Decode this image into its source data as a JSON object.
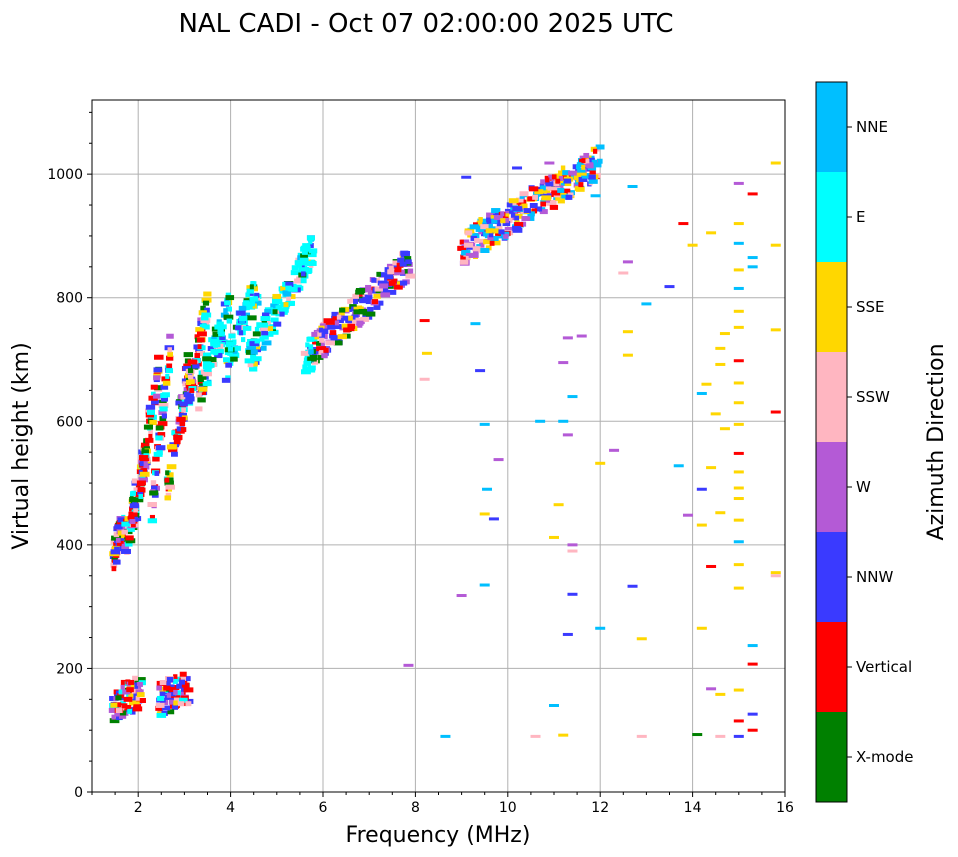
{
  "chart_data": {
    "type": "scatter",
    "title": "NAL CADI - Oct 07 02:00:00 2025 UTC",
    "xlabel": "Frequency (MHz)",
    "ylabel": "Virtual height (km)",
    "xlim": [
      1,
      16
    ],
    "ylim": [
      0,
      1120
    ],
    "xticks": [
      2,
      4,
      6,
      8,
      10,
      12,
      14,
      16
    ],
    "yticks": [
      0,
      200,
      400,
      600,
      800,
      1000
    ],
    "grid": true,
    "colorbar": {
      "title": "Azimuth Direction",
      "categories": [
        {
          "name": "X-mode",
          "color": "#008000"
        },
        {
          "name": "Vertical",
          "color": "#ff0000"
        },
        {
          "name": "NNW",
          "color": "#3a3aff"
        },
        {
          "name": "W",
          "color": "#b45ad6"
        },
        {
          "name": "SSW",
          "color": "#ffb6c1"
        },
        {
          "name": "SSE",
          "color": "#ffd700"
        },
        {
          "name": "E",
          "color": "#00ffff"
        },
        {
          "name": "NNE",
          "color": "#00bfff"
        }
      ]
    },
    "trace_segments": [
      {
        "f0": 1.45,
        "f1": 1.7,
        "h0": 375,
        "h1": 445
      },
      {
        "f0": 1.7,
        "f1": 2.0,
        "h0": 400,
        "h1": 470
      },
      {
        "f0": 1.85,
        "f1": 2.2,
        "h0": 450,
        "h1": 560
      },
      {
        "f0": 2.05,
        "f1": 2.45,
        "h0": 500,
        "h1": 680
      },
      {
        "f0": 2.3,
        "f1": 2.7,
        "h0": 460,
        "h1": 720
      },
      {
        "f0": 2.6,
        "f1": 3.1,
        "h0": 480,
        "h1": 690
      },
      {
        "f0": 2.9,
        "f1": 3.5,
        "h0": 580,
        "h1": 790
      },
      {
        "f0": 3.3,
        "f1": 4.0,
        "h0": 640,
        "h1": 790
      },
      {
        "f0": 3.9,
        "f1": 4.6,
        "h0": 690,
        "h1": 820
      },
      {
        "f0": 4.4,
        "f1": 5.8,
        "h0": 700,
        "h1": 880
      },
      {
        "f0": 5.6,
        "f1": 7.9,
        "h0": 700,
        "h1": 860
      },
      {
        "f0": 9.0,
        "f1": 12.0,
        "h0": 880,
        "h1": 1020
      },
      {
        "f0": 1.45,
        "f1": 2.1,
        "h0": 140,
        "h1": 165
      },
      {
        "f0": 2.45,
        "f1": 3.1,
        "h0": 150,
        "h1": 168
      }
    ],
    "points": [
      {
        "f": 9.1,
        "h": 995,
        "az": "NNW"
      },
      {
        "f": 9.2,
        "h": 870,
        "az": "W"
      },
      {
        "f": 9.3,
        "h": 758,
        "az": "NNE"
      },
      {
        "f": 9.4,
        "h": 682,
        "az": "NNW"
      },
      {
        "f": 9.5,
        "h": 595,
        "az": "NNE"
      },
      {
        "f": 9.55,
        "h": 490,
        "az": "NNE"
      },
      {
        "f": 9.5,
        "h": 450,
        "az": "SSE"
      },
      {
        "f": 9.7,
        "h": 442,
        "az": "NNW"
      },
      {
        "f": 9.5,
        "h": 335,
        "az": "NNE"
      },
      {
        "f": 9.0,
        "h": 318,
        "az": "W"
      },
      {
        "f": 8.2,
        "h": 763,
        "az": "Vertical"
      },
      {
        "f": 8.25,
        "h": 710,
        "az": "SSE"
      },
      {
        "f": 8.2,
        "h": 668,
        "az": "SSW"
      },
      {
        "f": 7.85,
        "h": 205,
        "az": "W"
      },
      {
        "f": 8.65,
        "h": 90,
        "az": "NNE"
      },
      {
        "f": 10.2,
        "h": 1010,
        "az": "NNW"
      },
      {
        "f": 10.9,
        "h": 1018,
        "az": "W"
      },
      {
        "f": 11.6,
        "h": 1000,
        "az": "SSE"
      },
      {
        "f": 11.9,
        "h": 965,
        "az": "NNE"
      },
      {
        "f": 12.7,
        "h": 980,
        "az": "NNE"
      },
      {
        "f": 12.6,
        "h": 858,
        "az": "W"
      },
      {
        "f": 12.5,
        "h": 840,
        "az": "SSW"
      },
      {
        "f": 13.0,
        "h": 790,
        "az": "NNE"
      },
      {
        "f": 13.5,
        "h": 818,
        "az": "NNW"
      },
      {
        "f": 13.8,
        "h": 920,
        "az": "Vertical"
      },
      {
        "f": 14.0,
        "h": 885,
        "az": "SSE"
      },
      {
        "f": 12.6,
        "h": 745,
        "az": "SSE"
      },
      {
        "f": 12.6,
        "h": 707,
        "az": "SSE"
      },
      {
        "f": 12.3,
        "h": 553,
        "az": "W"
      },
      {
        "f": 12.0,
        "h": 532,
        "az": "SSE"
      },
      {
        "f": 11.2,
        "h": 695,
        "az": "W"
      },
      {
        "f": 11.3,
        "h": 735,
        "az": "W"
      },
      {
        "f": 11.6,
        "h": 738,
        "az": "W"
      },
      {
        "f": 11.4,
        "h": 640,
        "az": "NNE"
      },
      {
        "f": 10.7,
        "h": 600,
        "az": "NNE"
      },
      {
        "f": 11.2,
        "h": 600,
        "az": "NNE"
      },
      {
        "f": 11.3,
        "h": 578,
        "az": "W"
      },
      {
        "f": 9.8,
        "h": 538,
        "az": "W"
      },
      {
        "f": 11.1,
        "h": 465,
        "az": "SSE"
      },
      {
        "f": 11.0,
        "h": 412,
        "az": "SSE"
      },
      {
        "f": 11.4,
        "h": 400,
        "az": "W"
      },
      {
        "f": 11.4,
        "h": 390,
        "az": "SSW"
      },
      {
        "f": 11.4,
        "h": 320,
        "az": "NNW"
      },
      {
        "f": 11.3,
        "h": 255,
        "az": "NNW"
      },
      {
        "f": 12.7,
        "h": 333,
        "az": "NNW"
      },
      {
        "f": 12.9,
        "h": 248,
        "az": "SSE"
      },
      {
        "f": 12.0,
        "h": 265,
        "az": "NNE"
      },
      {
        "f": 11.0,
        "h": 140,
        "az": "NNE"
      },
      {
        "f": 11.2,
        "h": 92,
        "az": "SSE"
      },
      {
        "f": 10.6,
        "h": 90,
        "az": "SSW"
      },
      {
        "f": 12.9,
        "h": 90,
        "az": "SSW"
      },
      {
        "f": 13.7,
        "h": 528,
        "az": "NNE"
      },
      {
        "f": 14.2,
        "h": 490,
        "az": "NNW"
      },
      {
        "f": 14.4,
        "h": 525,
        "az": "SSE"
      },
      {
        "f": 13.9,
        "h": 448,
        "az": "W"
      },
      {
        "f": 14.2,
        "h": 432,
        "az": "SSE"
      },
      {
        "f": 14.6,
        "h": 452,
        "az": "SSE"
      },
      {
        "f": 14.7,
        "h": 588,
        "az": "SSE"
      },
      {
        "f": 14.5,
        "h": 612,
        "az": "SSE"
      },
      {
        "f": 14.2,
        "h": 645,
        "az": "NNE"
      },
      {
        "f": 14.3,
        "h": 660,
        "az": "SSE"
      },
      {
        "f": 14.6,
        "h": 692,
        "az": "SSE"
      },
      {
        "f": 14.6,
        "h": 718,
        "az": "SSE"
      },
      {
        "f": 14.7,
        "h": 742,
        "az": "SSE"
      },
      {
        "f": 14.4,
        "h": 905,
        "az": "SSE"
      },
      {
        "f": 14.2,
        "h": 265,
        "az": "SSE"
      },
      {
        "f": 14.4,
        "h": 365,
        "az": "Vertical"
      },
      {
        "f": 14.4,
        "h": 167,
        "az": "W"
      },
      {
        "f": 14.6,
        "h": 158,
        "az": "SSE"
      },
      {
        "f": 14.1,
        "h": 93,
        "az": "X-mode"
      },
      {
        "f": 14.6,
        "h": 90,
        "az": "SSW"
      },
      {
        "f": 15.0,
        "h": 985,
        "az": "W"
      },
      {
        "f": 15.0,
        "h": 920,
        "az": "SSE"
      },
      {
        "f": 15.0,
        "h": 888,
        "az": "NNE"
      },
      {
        "f": 15.0,
        "h": 845,
        "az": "SSE"
      },
      {
        "f": 15.0,
        "h": 815,
        "az": "NNE"
      },
      {
        "f": 15.0,
        "h": 778,
        "az": "SSE"
      },
      {
        "f": 15.0,
        "h": 752,
        "az": "SSE"
      },
      {
        "f": 15.0,
        "h": 698,
        "az": "Vertical"
      },
      {
        "f": 15.0,
        "h": 662,
        "az": "SSE"
      },
      {
        "f": 15.0,
        "h": 630,
        "az": "SSE"
      },
      {
        "f": 15.0,
        "h": 595,
        "az": "SSE"
      },
      {
        "f": 15.0,
        "h": 548,
        "az": "Vertical"
      },
      {
        "f": 15.0,
        "h": 518,
        "az": "SSE"
      },
      {
        "f": 15.0,
        "h": 492,
        "az": "SSE"
      },
      {
        "f": 15.0,
        "h": 475,
        "az": "SSE"
      },
      {
        "f": 15.0,
        "h": 440,
        "az": "SSE"
      },
      {
        "f": 15.0,
        "h": 405,
        "az": "NNE"
      },
      {
        "f": 15.0,
        "h": 368,
        "az": "SSE"
      },
      {
        "f": 15.0,
        "h": 330,
        "az": "SSE"
      },
      {
        "f": 15.0,
        "h": 165,
        "az": "SSE"
      },
      {
        "f": 15.0,
        "h": 115,
        "az": "Vertical"
      },
      {
        "f": 15.0,
        "h": 90,
        "az": "NNW"
      },
      {
        "f": 15.3,
        "h": 968,
        "az": "Vertical"
      },
      {
        "f": 15.3,
        "h": 865,
        "az": "NNE"
      },
      {
        "f": 15.3,
        "h": 850,
        "az": "NNE"
      },
      {
        "f": 15.3,
        "h": 237,
        "az": "NNE"
      },
      {
        "f": 15.3,
        "h": 207,
        "az": "Vertical"
      },
      {
        "f": 15.3,
        "h": 126,
        "az": "NNW"
      },
      {
        "f": 15.3,
        "h": 100,
        "az": "Vertical"
      },
      {
        "f": 15.8,
        "h": 1018,
        "az": "SSE"
      },
      {
        "f": 15.8,
        "h": 885,
        "az": "SSE"
      },
      {
        "f": 15.8,
        "h": 748,
        "az": "SSE"
      },
      {
        "f": 15.8,
        "h": 615,
        "az": "Vertical"
      },
      {
        "f": 15.8,
        "h": 355,
        "az": "SSE"
      },
      {
        "f": 15.8,
        "h": 350,
        "az": "SSW"
      }
    ]
  }
}
